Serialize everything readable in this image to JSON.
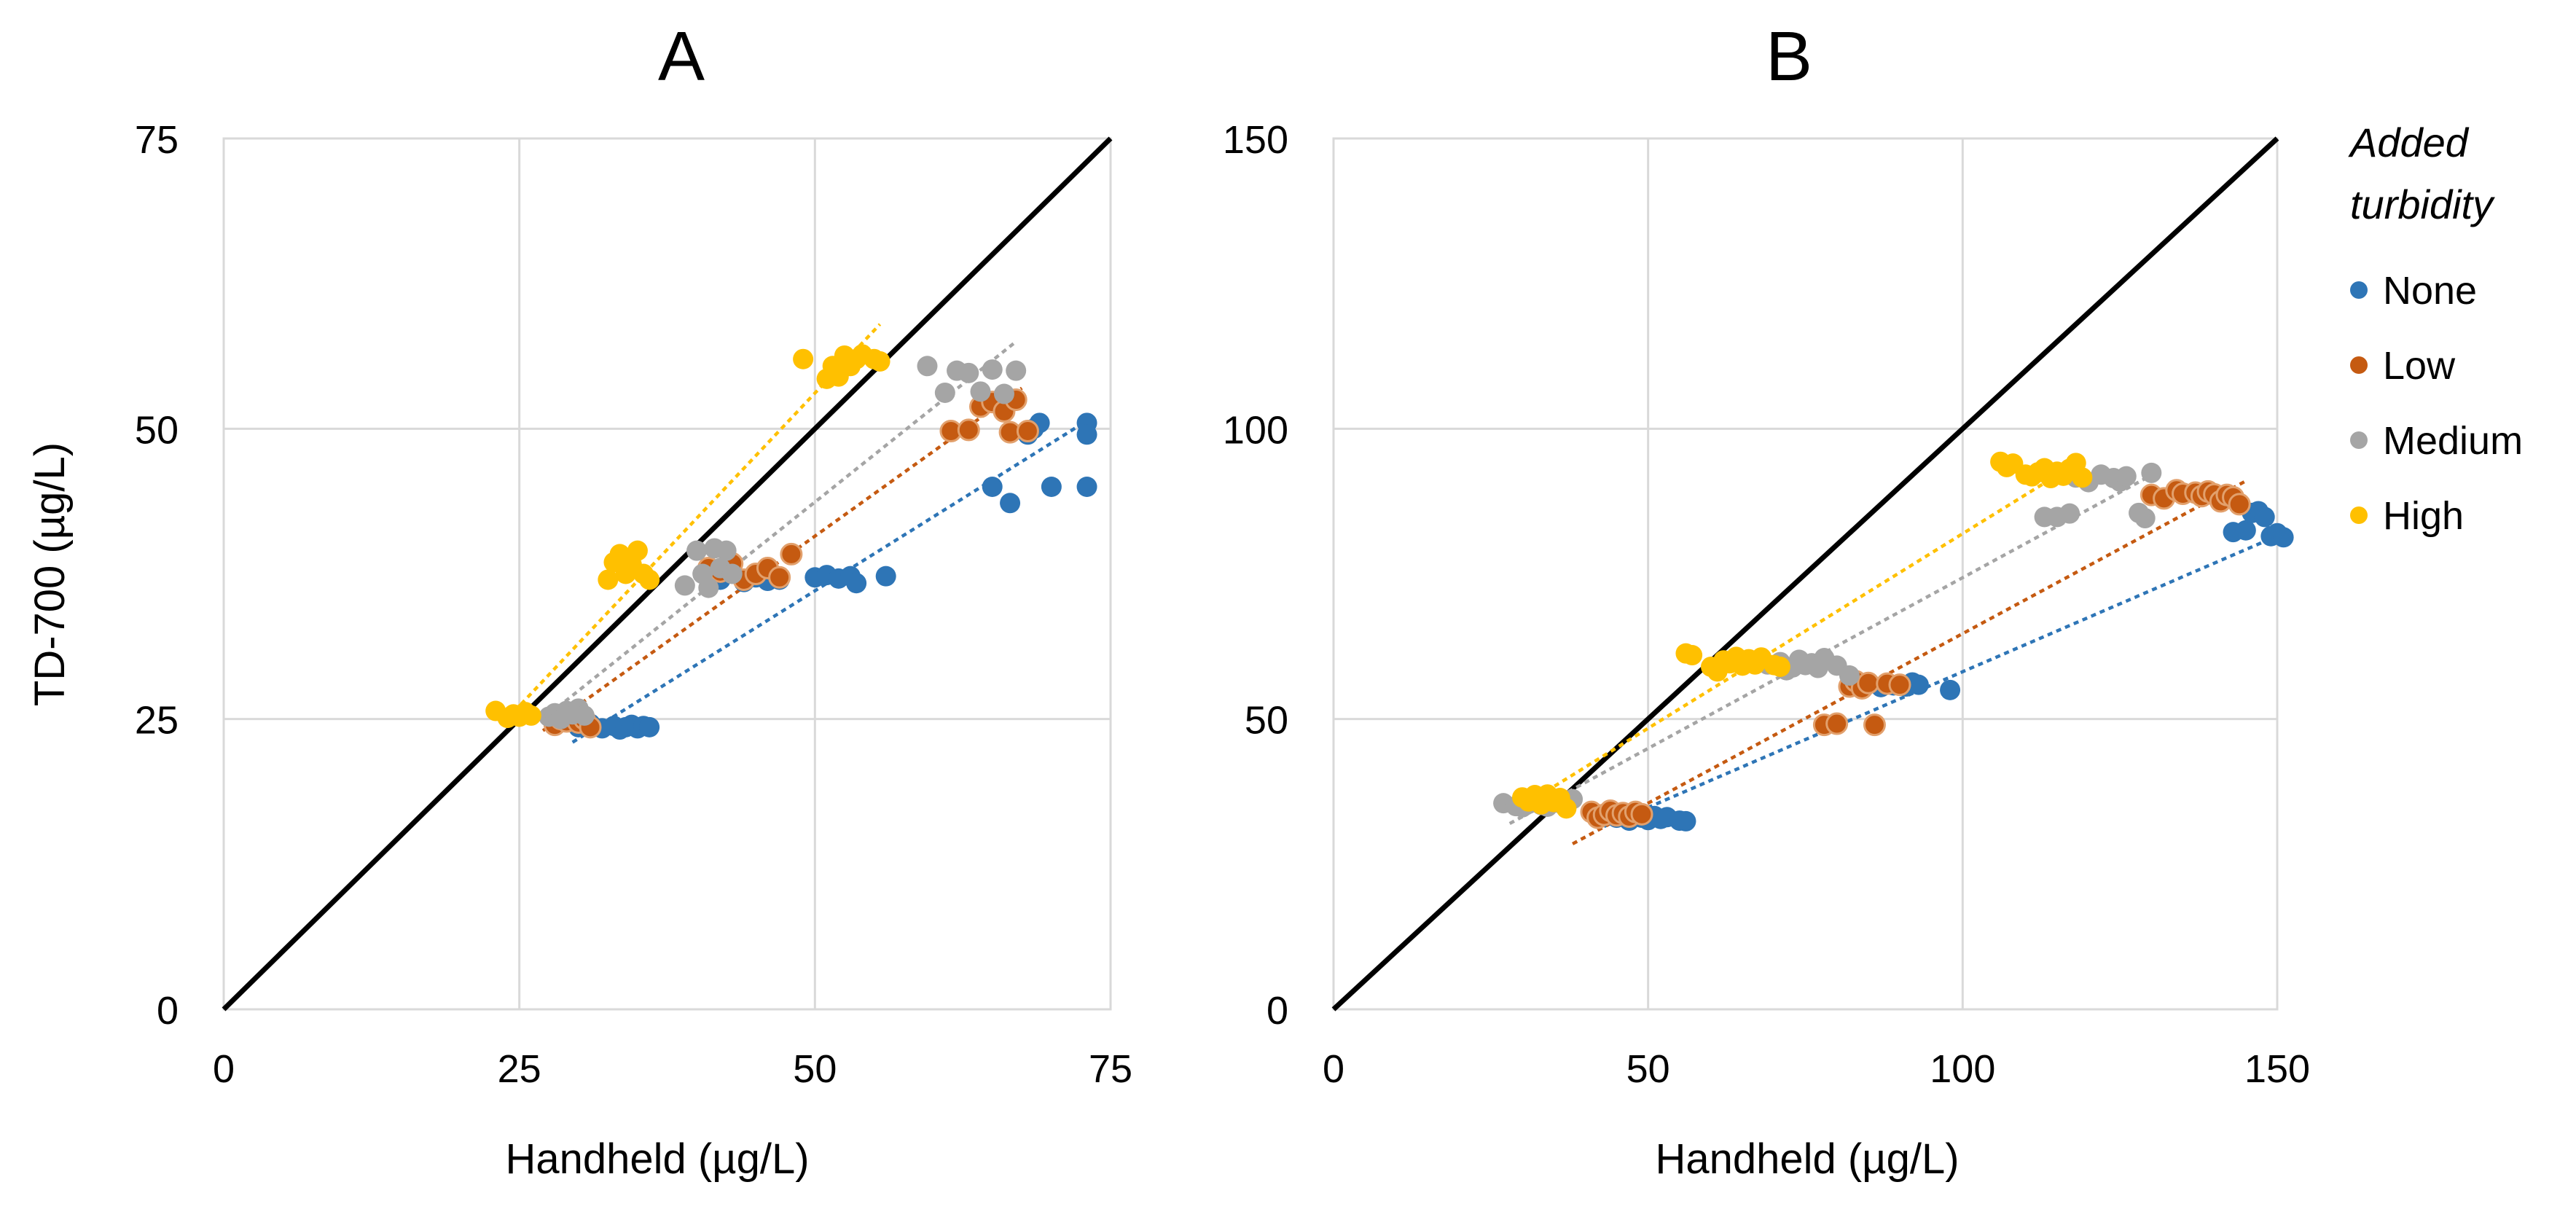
{
  "chart_data": [
    {
      "panel": "A",
      "type": "scatter",
      "title": "A",
      "xlabel": "Handheld (µg/L)",
      "ylabel": "TD-700 (µg/L)",
      "xlim": [
        0,
        75
      ],
      "ylim": [
        0,
        75
      ],
      "xticks": [
        "0",
        "25",
        "50",
        "75"
      ],
      "yticks": [
        "0",
        "25",
        "50",
        "75"
      ],
      "grid": true,
      "reference_line": {
        "name": "1:1",
        "from": [
          0,
          0
        ],
        "to": [
          75,
          75
        ],
        "color": "#000000"
      },
      "series": [
        {
          "name": "None",
          "color": "#2E75B6",
          "points": [
            [
              30,
              24.3
            ],
            [
              31,
              24.6
            ],
            [
              32,
              24.2
            ],
            [
              33,
              24.4
            ],
            [
              33.5,
              24.1
            ],
            [
              34,
              24.3
            ],
            [
              34.5,
              24.5
            ],
            [
              35,
              24.2
            ],
            [
              35.5,
              24.4
            ],
            [
              36,
              24.3
            ],
            [
              42,
              37
            ],
            [
              44,
              36.8
            ],
            [
              45,
              37.2
            ],
            [
              46,
              36.9
            ],
            [
              47,
              37
            ],
            [
              50,
              37.2
            ],
            [
              51,
              37.4
            ],
            [
              52,
              37.1
            ],
            [
              53,
              37.3
            ],
            [
              53.5,
              36.7
            ],
            [
              56,
              37.3
            ],
            [
              65,
              45
            ],
            [
              66.5,
              43.6
            ],
            [
              68,
              49.5
            ],
            [
              69,
              50.5
            ],
            [
              70,
              45
            ],
            [
              73,
              50.5
            ],
            [
              73,
              49.5
            ],
            [
              73,
              45
            ],
            [
              68.5,
              50
            ]
          ],
          "trend": {
            "from": [
              29.5,
              23
            ],
            "to": [
              73.5,
              51
            ]
          }
        },
        {
          "name": "Low",
          "color": "#C55A11",
          "points": [
            [
              28,
              24.5
            ],
            [
              28.5,
              25
            ],
            [
              29,
              24.8
            ],
            [
              29.5,
              25.2
            ],
            [
              30,
              24.7
            ],
            [
              30.5,
              25
            ],
            [
              31,
              24.3
            ],
            [
              41,
              38
            ],
            [
              42,
              37.7
            ],
            [
              43,
              38.4
            ],
            [
              44,
              37
            ],
            [
              45,
              37.5
            ],
            [
              46,
              38
            ],
            [
              47,
              37.2
            ],
            [
              48,
              39.2
            ],
            [
              61.5,
              49.8
            ],
            [
              63,
              49.9
            ],
            [
              64,
              51.9
            ],
            [
              65,
              52.3
            ],
            [
              66,
              51.5
            ],
            [
              66.5,
              49.7
            ],
            [
              67,
              52.5
            ],
            [
              68,
              49.8
            ]
          ],
          "trend": {
            "from": [
              27,
              24
            ],
            "to": [
              67.5,
              53.5
            ]
          }
        },
        {
          "name": "Medium",
          "color": "#A5A5A5",
          "points": [
            [
              27.5,
              25.2
            ],
            [
              28,
              25.5
            ],
            [
              28.5,
              25
            ],
            [
              29,
              25.7
            ],
            [
              29.5,
              25.4
            ],
            [
              30,
              25.9
            ],
            [
              30.5,
              25.3
            ],
            [
              39,
              36.5
            ],
            [
              40,
              39.5
            ],
            [
              40.5,
              37.5
            ],
            [
              41,
              36.3
            ],
            [
              41.5,
              39.7
            ],
            [
              42,
              38
            ],
            [
              42.5,
              39.5
            ],
            [
              43,
              37.5
            ],
            [
              59.5,
              55.4
            ],
            [
              61,
              53.1
            ],
            [
              62,
              55
            ],
            [
              63,
              54.8
            ],
            [
              64,
              53.2
            ],
            [
              65,
              55.1
            ],
            [
              66,
              53
            ],
            [
              67,
              55
            ]
          ],
          "trend": {
            "from": [
              27,
              25
            ],
            "to": [
              67,
              57.5
            ]
          }
        },
        {
          "name": "High",
          "color": "#FFC000",
          "points": [
            [
              23,
              25.7
            ],
            [
              24,
              25.1
            ],
            [
              24.5,
              25.4
            ],
            [
              25,
              25.2
            ],
            [
              25.5,
              25.6
            ],
            [
              26,
              25.3
            ],
            [
              32.5,
              37
            ],
            [
              33,
              38.5
            ],
            [
              33.5,
              39.2
            ],
            [
              34,
              37.5
            ],
            [
              34.5,
              38.3
            ],
            [
              35,
              39.5
            ],
            [
              35.5,
              37.5
            ],
            [
              36,
              37
            ],
            [
              49,
              56
            ],
            [
              51,
              54.3
            ],
            [
              51.5,
              55.4
            ],
            [
              52,
              54.5
            ],
            [
              52.5,
              56.3
            ],
            [
              53,
              55.4
            ],
            [
              53.5,
              56
            ],
            [
              54,
              56.4
            ],
            [
              55,
              56
            ],
            [
              55.5,
              55.8
            ]
          ],
          "trend": {
            "from": [
              23.5,
              24.5
            ],
            "to": [
              55.5,
              59
            ]
          }
        }
      ]
    },
    {
      "panel": "B",
      "type": "scatter",
      "title": "B",
      "xlabel": "Handheld (µg/L)",
      "ylabel": "",
      "xlim": [
        0,
        150
      ],
      "ylim": [
        0,
        150
      ],
      "xticks": [
        "0",
        "50",
        "100",
        "150"
      ],
      "yticks": [
        "0",
        "50",
        "100",
        "150"
      ],
      "grid": true,
      "reference_line": {
        "name": "1:1",
        "from": [
          0,
          0
        ],
        "to": [
          150,
          150
        ],
        "color": "#000000"
      },
      "series": [
        {
          "name": "None",
          "color": "#2E75B6",
          "points": [
            [
              45,
              33
            ],
            [
              47,
              32.5
            ],
            [
              49,
              33
            ],
            [
              50,
              32.6
            ],
            [
              51,
              33.3
            ],
            [
              52,
              32.8
            ],
            [
              53,
              33.1
            ],
            [
              55,
              32.5
            ],
            [
              56,
              32.4
            ],
            [
              87,
              55.5
            ],
            [
              88,
              56.2
            ],
            [
              89,
              55.8
            ],
            [
              90,
              56
            ],
            [
              91,
              55.6
            ],
            [
              92,
              56.3
            ],
            [
              93,
              55.9
            ],
            [
              98,
              55
            ],
            [
              143,
              82.2
            ],
            [
              145,
              82.5
            ],
            [
              146,
              85.5
            ],
            [
              147,
              85.8
            ],
            [
              148,
              84.8
            ],
            [
              149,
              81.5
            ],
            [
              150,
              82
            ],
            [
              151,
              81.3
            ]
          ],
          "trend": {
            "from": [
              43,
              31.5
            ],
            "to": [
              151,
              82
            ]
          }
        },
        {
          "name": "Low",
          "color": "#C55A11",
          "points": [
            [
              41,
              34
            ],
            [
              42,
              33
            ],
            [
              43,
              33.5
            ],
            [
              44,
              34.2
            ],
            [
              45,
              33.4
            ],
            [
              46,
              33.8
            ],
            [
              47,
              33.2
            ],
            [
              48,
              34
            ],
            [
              49,
              33.6
            ],
            [
              78,
              49
            ],
            [
              80,
              49.2
            ],
            [
              82,
              55.6
            ],
            [
              83,
              56.5
            ],
            [
              84,
              55.3
            ],
            [
              85,
              56.2
            ],
            [
              86,
              49
            ],
            [
              88,
              56.1
            ],
            [
              90,
              55.9
            ],
            [
              130,
              88.6
            ],
            [
              132,
              88
            ],
            [
              134,
              89.4
            ],
            [
              135,
              88.8
            ],
            [
              137,
              89
            ],
            [
              138,
              88.4
            ],
            [
              139,
              89.2
            ],
            [
              140,
              88.7
            ],
            [
              141,
              87.5
            ],
            [
              142,
              88.6
            ],
            [
              143,
              88.2
            ],
            [
              144,
              87
            ]
          ],
          "trend": {
            "from": [
              38,
              28.5
            ],
            "to": [
              145,
              91
            ]
          }
        },
        {
          "name": "Medium",
          "color": "#A5A5A5",
          "points": [
            [
              27,
              35.5
            ],
            [
              29,
              35
            ],
            [
              30,
              34.8
            ],
            [
              31,
              35.4
            ],
            [
              32,
              36
            ],
            [
              33,
              35.2
            ],
            [
              34,
              34.9
            ],
            [
              36,
              35.5
            ],
            [
              38,
              36.2
            ],
            [
              69,
              59.4
            ],
            [
              71,
              59.8
            ],
            [
              72,
              58.4
            ],
            [
              73,
              58.9
            ],
            [
              74,
              60.2
            ],
            [
              75,
              59.3
            ],
            [
              76,
              59.6
            ],
            [
              77,
              58.8
            ],
            [
              78,
              60.5
            ],
            [
              80,
              59.2
            ],
            [
              82,
              57.5
            ],
            [
              113,
              84.8
            ],
            [
              115,
              84.8
            ],
            [
              117,
              85.4
            ],
            [
              118,
              91.6
            ],
            [
              120,
              90.8
            ],
            [
              122,
              92.1
            ],
            [
              124,
              91.5
            ],
            [
              125,
              90.9
            ],
            [
              126,
              91.8
            ],
            [
              128,
              85.5
            ],
            [
              129,
              84.6
            ],
            [
              130,
              92.4
            ]
          ],
          "trend": {
            "from": [
              28,
              32
            ],
            "to": [
              130,
              92
            ]
          }
        },
        {
          "name": "High",
          "color": "#FFC000",
          "points": [
            [
              30,
              36.5
            ],
            [
              31,
              35.8
            ],
            [
              32,
              36.9
            ],
            [
              33,
              35.3
            ],
            [
              34,
              37
            ],
            [
              35,
              35.7
            ],
            [
              36,
              36.4
            ],
            [
              37,
              34.6
            ],
            [
              56,
              61.3
            ],
            [
              57,
              61
            ],
            [
              60,
              59
            ],
            [
              61,
              58.2
            ],
            [
              62,
              60.1
            ],
            [
              63,
              59.6
            ],
            [
              64,
              60.7
            ],
            [
              65,
              59.2
            ],
            [
              66,
              60.3
            ],
            [
              67,
              59.4
            ],
            [
              68,
              60.6
            ],
            [
              70,
              59.3
            ],
            [
              71,
              59
            ],
            [
              106,
              94.3
            ],
            [
              107,
              93.4
            ],
            [
              108,
              94
            ],
            [
              110,
              92.1
            ],
            [
              111,
              91.8
            ],
            [
              112,
              92.5
            ],
            [
              113,
              93.2
            ],
            [
              114,
              91.5
            ],
            [
              115,
              92.6
            ],
            [
              116,
              91.9
            ],
            [
              117,
              93.1
            ],
            [
              118,
              94.1
            ],
            [
              119,
              91.6
            ]
          ],
          "trend": {
            "from": [
              30,
              35
            ],
            "to": [
              118,
              94
            ]
          }
        }
      ]
    }
  ],
  "legend": {
    "title_line1": "Added",
    "title_line2": "turbidity",
    "placement": "right",
    "entries": [
      {
        "label": "None",
        "color": "#2E75B6"
      },
      {
        "label": "Low",
        "color": "#C55A11"
      },
      {
        "label": "Medium",
        "color": "#A5A5A5"
      },
      {
        "label": "High",
        "color": "#FFC000"
      }
    ]
  }
}
